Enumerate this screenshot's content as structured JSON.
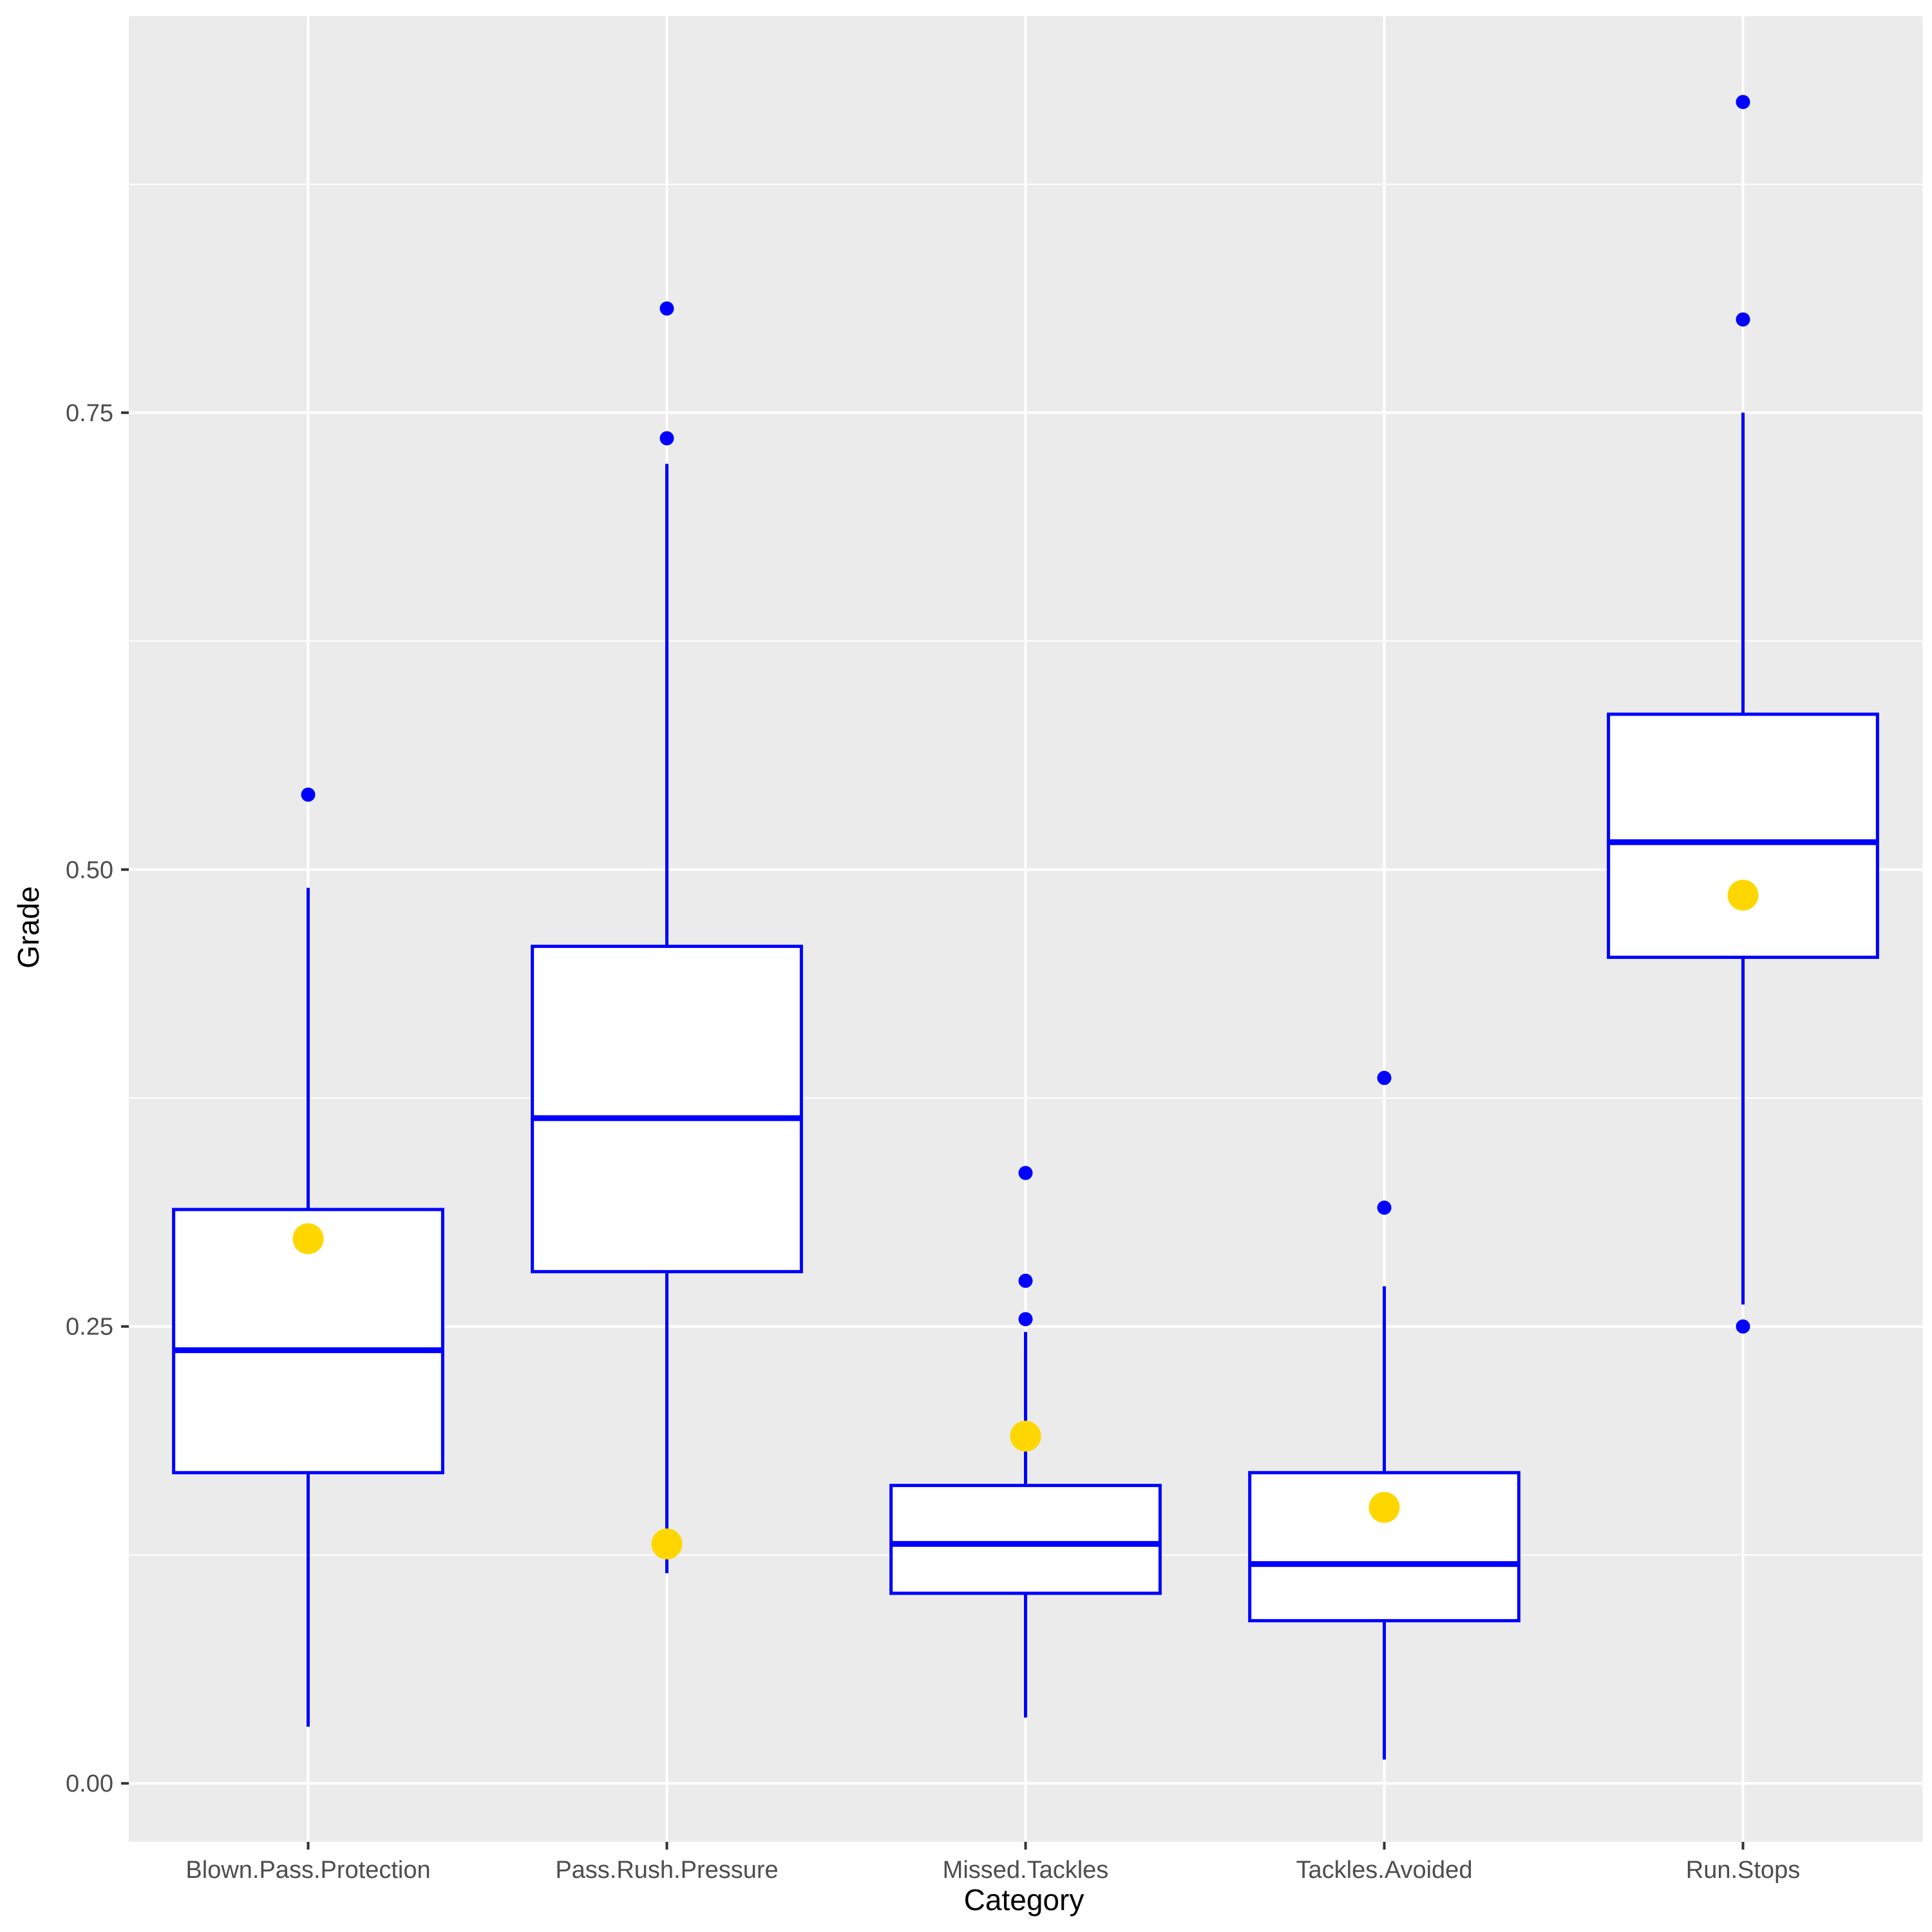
{
  "chart_data": {
    "type": "boxplot",
    "xlabel": "Category",
    "ylabel": "Grade",
    "ylim": [
      -0.032,
      0.967
    ],
    "yticks": [
      0.0,
      0.25,
      0.5,
      0.75
    ],
    "ytick_labels": [
      "0.00",
      "0.25",
      "0.50",
      "0.75"
    ],
    "y_minor_gridlines": [
      0.125,
      0.375,
      0.625,
      0.875
    ],
    "grid": true,
    "categories": [
      "Blown.Pass.Protection",
      "Pass.Rush.Pressure",
      "Missed.Tackles",
      "Tackles.Avoided",
      "Run.Stops"
    ],
    "boxes": [
      {
        "category": "Blown.Pass.Protection",
        "whisker_low": 0.031,
        "q1": 0.17,
        "median": 0.237,
        "q3": 0.314,
        "whisker_high": 0.49,
        "outliers": [
          0.541
        ],
        "highlight": 0.298
      },
      {
        "category": "Pass.Rush.Pressure",
        "whisker_low": 0.115,
        "q1": 0.28,
        "median": 0.364,
        "q3": 0.458,
        "whisker_high": 0.722,
        "outliers": [
          0.736,
          0.807
        ],
        "highlight": 0.131
      },
      {
        "category": "Missed.Tackles",
        "whisker_low": 0.036,
        "q1": 0.104,
        "median": 0.131,
        "q3": 0.163,
        "whisker_high": 0.247,
        "outliers": [
          0.254,
          0.275,
          0.334
        ],
        "highlight": 0.19
      },
      {
        "category": "Tackles.Avoided",
        "whisker_low": 0.013,
        "q1": 0.089,
        "median": 0.12,
        "q3": 0.17,
        "whisker_high": 0.272,
        "outliers": [
          0.315,
          0.386
        ],
        "highlight": 0.151
      },
      {
        "category": "Run.Stops",
        "whisker_low": 0.262,
        "q1": 0.452,
        "median": 0.515,
        "q3": 0.585,
        "whisker_high": 0.75,
        "outliers": [
          0.25,
          0.801,
          0.92
        ],
        "highlight": 0.486
      }
    ],
    "colors": {
      "panel_background": "#ebebeb",
      "grid": "#ffffff",
      "box_outline": "#0000ff",
      "box_fill": "#ffffff",
      "outlier": "#0000ff",
      "highlight_point": "#ffd700",
      "tick_mark": "#333333"
    }
  }
}
